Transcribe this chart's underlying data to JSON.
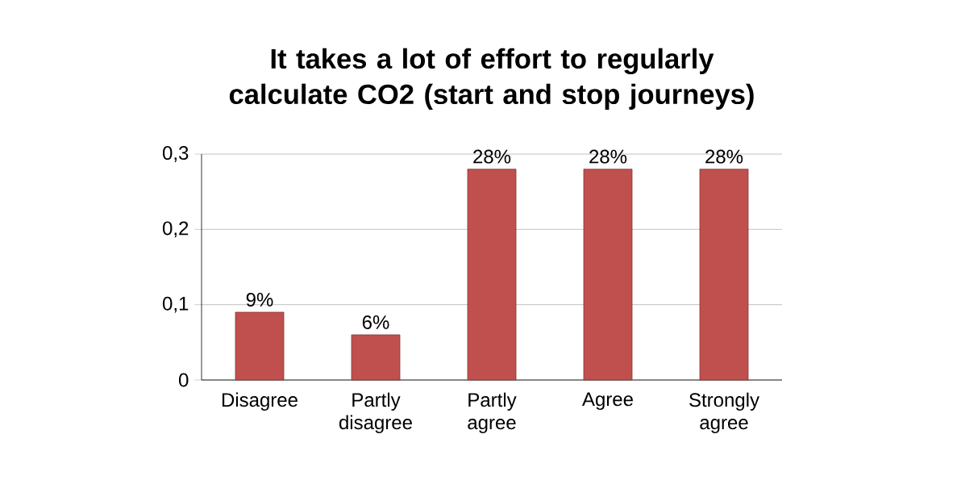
{
  "chart_data": {
    "type": "bar",
    "title": "It takes a lot of effort to regularly calculate CO2 (start and stop journeys)",
    "categories": [
      "Disagree",
      "Partly disagree",
      "Partly agree",
      "Agree",
      "Strongly agree"
    ],
    "values": [
      0.09,
      0.06,
      0.28,
      0.28,
      0.28
    ],
    "value_labels": [
      "9%",
      "6%",
      "28%",
      "28%",
      "28%"
    ],
    "color": "#c0504d",
    "ylim": [
      0,
      0.3
    ],
    "yticks": [
      0,
      {
        "value": 0.1,
        "label": "0,1"
      },
      {
        "value": 0.2,
        "label": "0,2"
      },
      {
        "value": 0.3,
        "label": "0,3"
      }
    ],
    "grid": "y"
  }
}
